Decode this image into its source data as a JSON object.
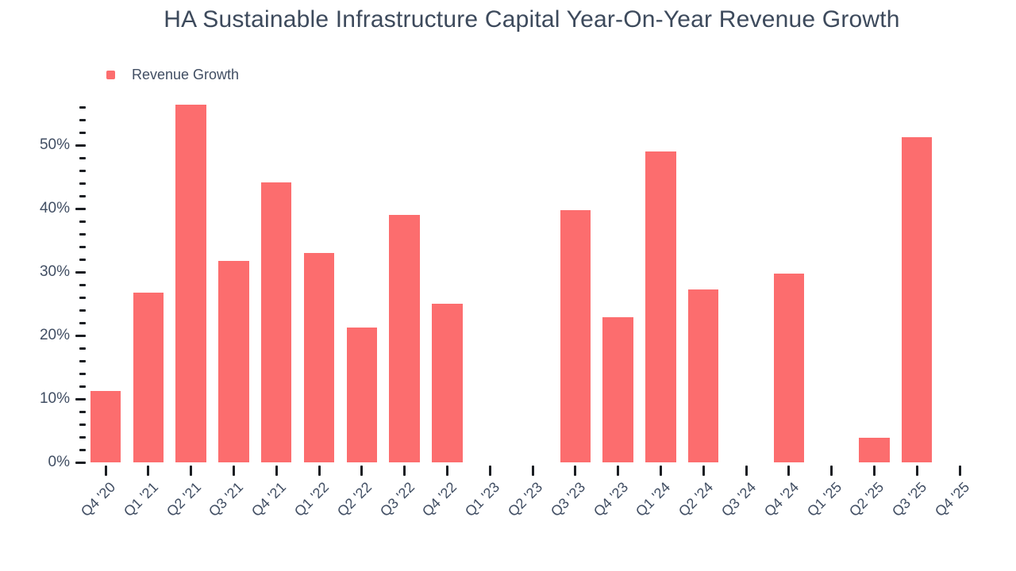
{
  "chart_data": {
    "type": "bar",
    "title": "HA Sustainable Infrastructure Capital Year-On-Year Revenue Growth",
    "legend": {
      "label": "Revenue Growth",
      "position": "top-left"
    },
    "categories": [
      "Q4 '20",
      "Q1 '21",
      "Q2 '21",
      "Q3 '21",
      "Q4 '21",
      "Q1 '22",
      "Q2 '22",
      "Q3 '22",
      "Q4 '22",
      "Q1 '23",
      "Q2 '23",
      "Q3 '23",
      "Q4 '23",
      "Q1 '24",
      "Q2 '24",
      "Q3 '24",
      "Q4 '24",
      "Q1 '25",
      "Q2 '25",
      "Q3 '25",
      "Q4 '25"
    ],
    "series": [
      {
        "name": "Revenue Growth",
        "values": [
          11.3,
          26.8,
          56.4,
          31.8,
          44.1,
          33.0,
          21.2,
          39.0,
          25.0,
          null,
          null,
          39.8,
          22.9,
          49.0,
          27.2,
          null,
          29.8,
          null,
          3.9,
          51.3,
          null
        ]
      }
    ],
    "unit": "%",
    "xlabel": "",
    "ylabel": "",
    "ylim": [
      0,
      56
    ],
    "y_major_ticks": [
      0,
      10,
      20,
      30,
      40,
      50
    ],
    "y_major_labels": [
      "0%",
      "10%",
      "20%",
      "30%",
      "40%",
      "50%"
    ],
    "y_minor_step": 2,
    "grid": false,
    "colors": {
      "bar": "#fc6d6e",
      "label_text": "#414e63",
      "title_text": "#3d4a5c",
      "tick": "#1b1e23"
    }
  }
}
